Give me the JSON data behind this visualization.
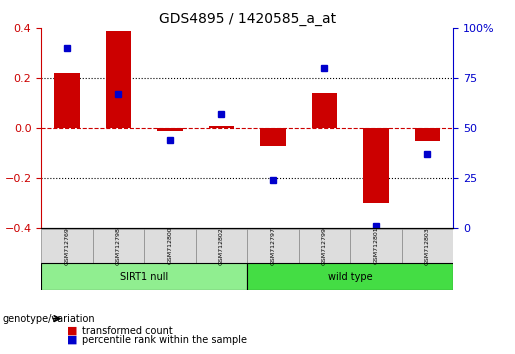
{
  "title": "GDS4895 / 1420585_a_at",
  "samples": [
    "GSM712769",
    "GSM712798",
    "GSM712800",
    "GSM712802",
    "GSM712797",
    "GSM712799",
    "GSM712801",
    "GSM712803"
  ],
  "transformed_count": [
    0.22,
    0.39,
    -0.01,
    0.01,
    -0.07,
    0.14,
    -0.3,
    -0.05
  ],
  "percentile_rank": [
    90,
    67,
    44,
    57,
    24,
    80,
    1,
    37
  ],
  "ylim_left": [
    -0.4,
    0.4
  ],
  "ylim_right": [
    0,
    100
  ],
  "yticks_left": [
    -0.4,
    -0.2,
    0.0,
    0.2,
    0.4
  ],
  "yticks_right": [
    0,
    25,
    50,
    75,
    100
  ],
  "ytick_right_labels": [
    "0",
    "25",
    "50",
    "75",
    "100%"
  ],
  "bar_color": "#cc0000",
  "dot_color": "#0000cc",
  "hline_color": "#cc0000",
  "dotted_line_color": "#000000",
  "ylabel_left_color": "#cc0000",
  "ylabel_right_color": "#0000cc",
  "legend_bar_label": "transformed count",
  "legend_dot_label": "percentile rank within the sample",
  "genotype_label": "genotype/variation",
  "background_color": "#ffffff",
  "plot_bg_color": "#ffffff",
  "group_defs": [
    {
      "start": 0,
      "end": 3,
      "label": "SIRT1 null",
      "color": "#90ee90"
    },
    {
      "start": 4,
      "end": 7,
      "label": "wild type",
      "color": "#44dd44"
    }
  ]
}
